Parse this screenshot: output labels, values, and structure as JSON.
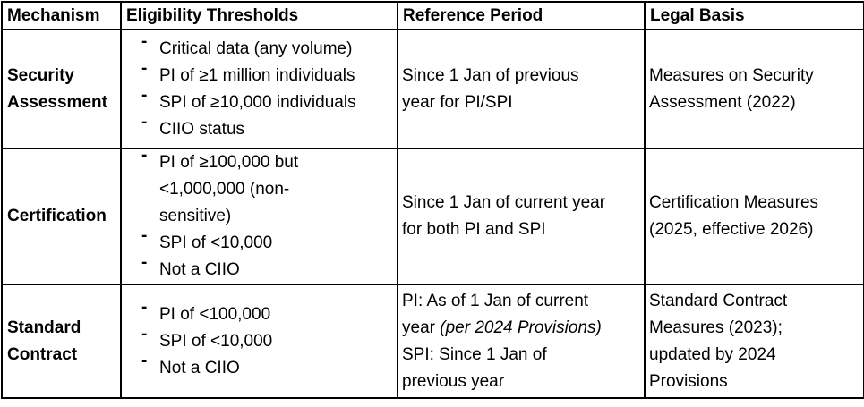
{
  "table": {
    "bullet_char": "-",
    "headers": {
      "mechanism": "Mechanism",
      "thresholds": "Eligibility Thresholds",
      "reference": "Reference Period",
      "legal": "Legal Basis"
    },
    "rows": [
      {
        "mechanism": "Security Assessment",
        "mechanism_lines": [
          "Security",
          "Assessment"
        ],
        "thresholds": [
          {
            "lines": [
              "Critical data (any volume)"
            ]
          },
          {
            "lines": [
              "PI of ≥1 million individuals"
            ]
          },
          {
            "lines": [
              "SPI of ≥10,000 individuals"
            ]
          },
          {
            "lines": [
              "CIIO status"
            ]
          }
        ],
        "reference_lines": [
          "Since 1 Jan of previous",
          "year for PI/SPI"
        ],
        "legal_lines": [
          "Measures on Security",
          "Assessment (2022)"
        ]
      },
      {
        "mechanism": "Certification",
        "mechanism_lines": [
          "Certification"
        ],
        "thresholds": [
          {
            "lines": [
              "PI of ≥100,000 but",
              "<1,000,000 (non-",
              "sensitive)"
            ]
          },
          {
            "lines": [
              "SPI of <10,000"
            ]
          },
          {
            "lines": [
              "Not a CIIO"
            ]
          }
        ],
        "reference_lines": [
          "Since 1 Jan of current year",
          "for both PI and SPI"
        ],
        "legal_lines": [
          "Certification Measures",
          "(2025, effective 2026)"
        ]
      },
      {
        "mechanism": "Standard Contract",
        "mechanism_lines": [
          "Standard",
          "Contract"
        ],
        "thresholds": [
          {
            "lines": [
              "PI of <100,000"
            ]
          },
          {
            "lines": [
              "SPI of <10,000"
            ]
          },
          {
            "lines": [
              "Not a CIIO"
            ]
          }
        ],
        "reference_rich": {
          "line1": "PI: As of 1 Jan of current",
          "line2_pre": "year ",
          "line2_italic": "(per 2024 Provisions)",
          "line3": "SPI: Since 1 Jan of",
          "line4": "previous year"
        },
        "legal_lines": [
          "Standard Contract",
          "Measures (2023);",
          "updated by 2024",
          "Provisions"
        ]
      }
    ]
  }
}
